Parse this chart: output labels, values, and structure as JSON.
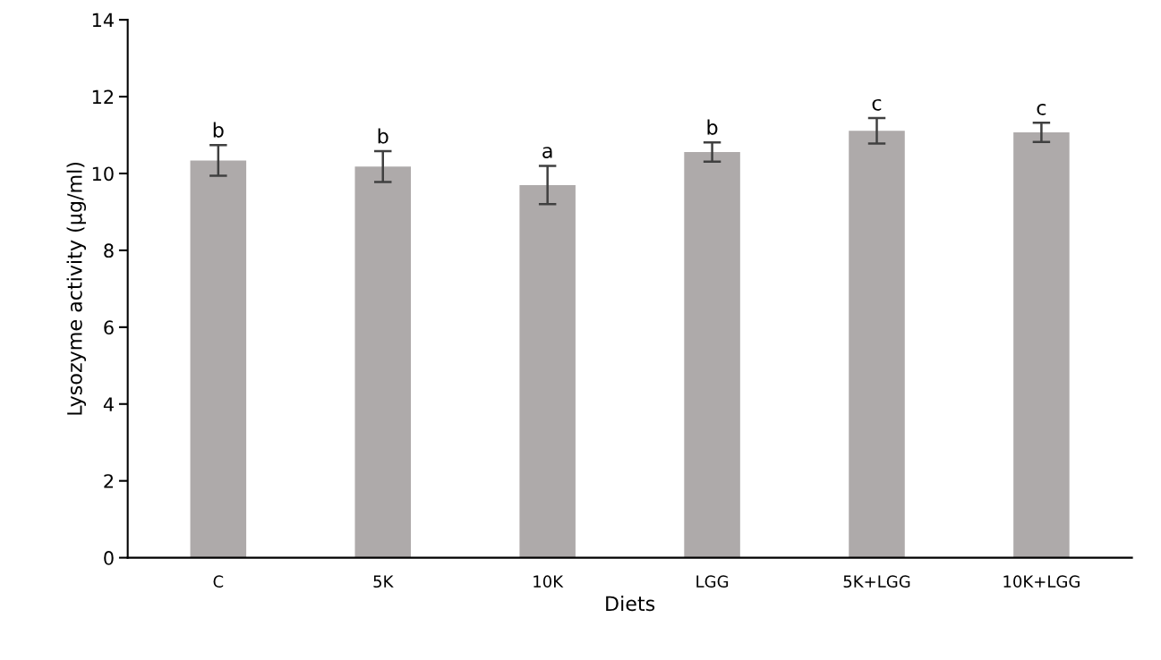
{
  "chart_data": {
    "type": "bar",
    "xlabel": "Diets",
    "ylabel": "Lysozyme activity (µg/ml)",
    "categories": [
      "C",
      "5K",
      "10K",
      "LGG",
      "5K+LGG",
      "10K+LGG"
    ],
    "values": [
      10.34,
      10.18,
      9.7,
      10.56,
      11.11,
      11.07
    ],
    "errors": [
      0.4,
      0.4,
      0.5,
      0.25,
      0.33,
      0.25
    ],
    "color": "#aeaaaa",
    "ylim": [
      0,
      14
    ],
    "yticks": [
      0,
      2,
      4,
      6,
      8,
      10,
      12,
      14
    ],
    "grid": false,
    "annotations": [
      {
        "text": "b",
        "x": "C",
        "y": 10.74
      },
      {
        "text": "b",
        "x": "5K",
        "y": 10.58
      },
      {
        "text": "a",
        "x": "10K",
        "y": 10.2
      },
      {
        "text": "b",
        "x": "LGG",
        "y": 10.81
      },
      {
        "text": "c",
        "x": "5K+LGG",
        "y": 11.44
      },
      {
        "text": "c",
        "x": "10K+LGG",
        "y": 11.32
      }
    ]
  }
}
